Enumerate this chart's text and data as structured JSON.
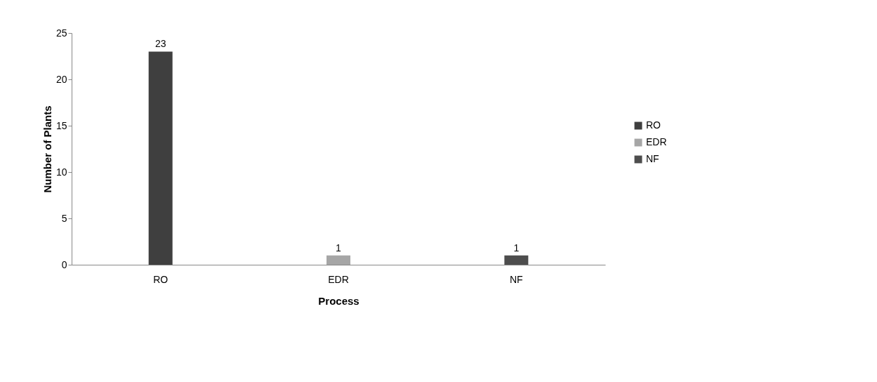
{
  "chart_data": {
    "type": "bar",
    "xlabel": "Process",
    "ylabel": "Number of Plants",
    "categories": [
      "RO",
      "EDR",
      "NF"
    ],
    "series": [
      {
        "name": "RO",
        "color": "#3f3f3f",
        "values": [
          23,
          null,
          null
        ]
      },
      {
        "name": "EDR",
        "color": "#a6a6a6",
        "values": [
          null,
          1,
          null
        ]
      },
      {
        "name": "NF",
        "color": "#4d4d4d",
        "values": [
          null,
          null,
          1
        ]
      }
    ],
    "ylim": [
      0,
      25
    ],
    "yticks": [
      0,
      5,
      10,
      15,
      20,
      25
    ],
    "grid": false,
    "legend": "right",
    "data_labels": true
  }
}
